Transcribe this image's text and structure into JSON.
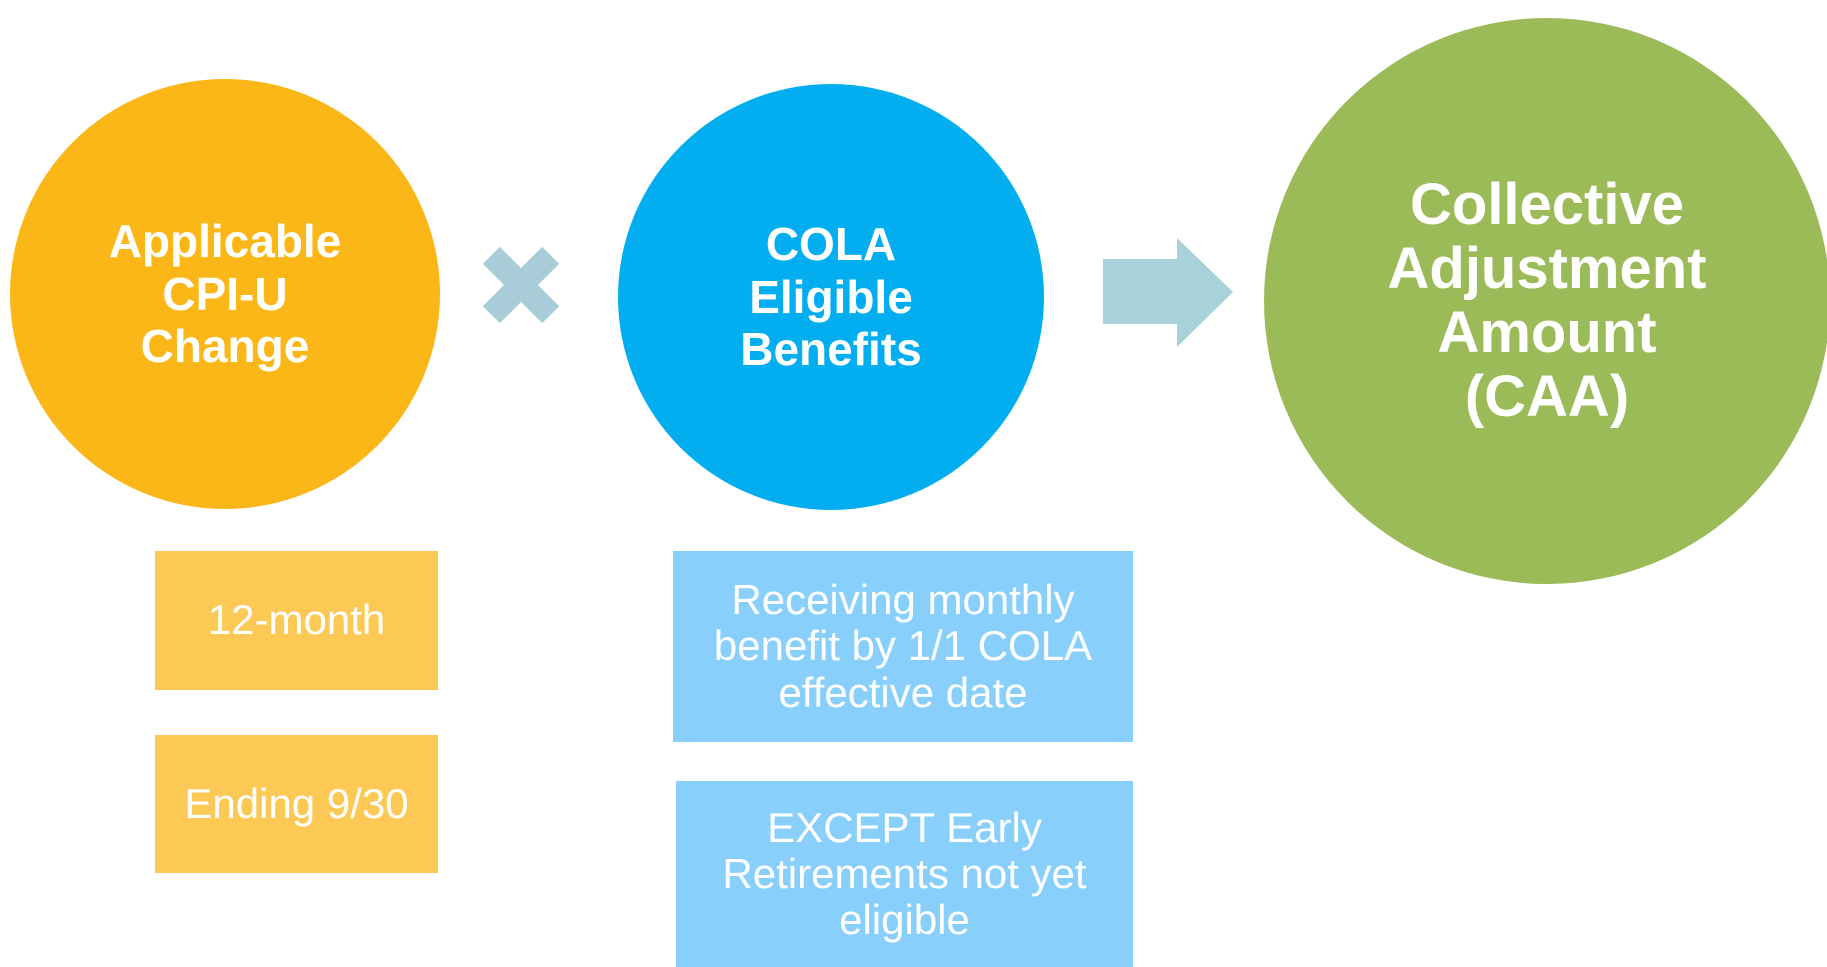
{
  "formula": {
    "left": {
      "lines": [
        "Applicable",
        "CPI-U",
        "Change"
      ]
    },
    "middle": {
      "lines": [
        "COLA",
        "Eligible",
        "Benefits"
      ]
    },
    "result": {
      "lines": [
        "Collective",
        "Adjustment",
        "Amount",
        "(CAA)"
      ]
    },
    "left_details": [
      {
        "lines": [
          "12-month"
        ]
      },
      {
        "lines": [
          "Ending 9/30"
        ]
      }
    ],
    "middle_details": [
      {
        "lines": [
          "Receiving monthly",
          "benefit by 1/1 COLA",
          "effective date"
        ]
      },
      {
        "lines": [
          "EXCEPT Early",
          "Retirements not yet",
          "eligible"
        ]
      }
    ]
  }
}
